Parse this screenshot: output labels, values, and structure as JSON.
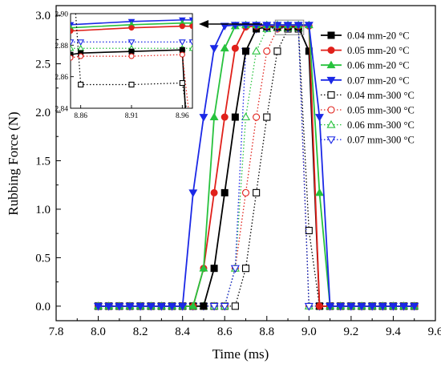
{
  "chart_data": {
    "type": "line",
    "xlabel": "Time (ms)",
    "ylabel": "Rubbing Force (N)",
    "xlim": [
      7.8,
      9.6
    ],
    "ylim": [
      -0.15,
      3.1
    ],
    "xticks": [
      "7.8",
      "8.0",
      "8.2",
      "8.4",
      "8.6",
      "8.8",
      "9.0",
      "9.2",
      "9.4",
      "9.6"
    ],
    "yticks": [
      "0.0",
      "0.5",
      "1.0",
      "1.5",
      "2.0",
      "2.5",
      "3.0"
    ],
    "legend_position": "top-right",
    "grid": false,
    "series": [
      {
        "name": "0.04 mm-20 °C",
        "color": "#000000",
        "marker": "square",
        "filled": true,
        "dotted": false,
        "points": [
          [
            8.0,
            0
          ],
          [
            8.05,
            0
          ],
          [
            8.1,
            0
          ],
          [
            8.15,
            0
          ],
          [
            8.2,
            0
          ],
          [
            8.25,
            0
          ],
          [
            8.3,
            0
          ],
          [
            8.35,
            0
          ],
          [
            8.4,
            0
          ],
          [
            8.45,
            0
          ],
          [
            8.5,
            0
          ],
          [
            8.55,
            0.39
          ],
          [
            8.6,
            1.17
          ],
          [
            8.65,
            1.95
          ],
          [
            8.7,
            2.63
          ],
          [
            8.75,
            2.86
          ],
          [
            8.8,
            2.88
          ],
          [
            8.85,
            2.88
          ],
          [
            8.9,
            2.88
          ],
          [
            8.95,
            2.88
          ],
          [
            9.0,
            2.63
          ],
          [
            9.05,
            0
          ],
          [
            9.1,
            0
          ],
          [
            9.15,
            0
          ],
          [
            9.2,
            0
          ],
          [
            9.25,
            0
          ],
          [
            9.3,
            0
          ],
          [
            9.35,
            0
          ],
          [
            9.4,
            0
          ],
          [
            9.45,
            0
          ],
          [
            9.5,
            0
          ]
        ]
      },
      {
        "name": "0.05 mm-20 °C",
        "color": "#e0201a",
        "marker": "circle",
        "filled": true,
        "dotted": false,
        "points": [
          [
            8.0,
            0
          ],
          [
            8.05,
            0
          ],
          [
            8.1,
            0
          ],
          [
            8.15,
            0
          ],
          [
            8.2,
            0
          ],
          [
            8.25,
            0
          ],
          [
            8.3,
            0
          ],
          [
            8.35,
            0
          ],
          [
            8.4,
            0
          ],
          [
            8.45,
            0
          ],
          [
            8.5,
            0.39
          ],
          [
            8.55,
            1.17
          ],
          [
            8.6,
            1.95
          ],
          [
            8.65,
            2.66
          ],
          [
            8.7,
            2.88
          ],
          [
            8.75,
            2.89
          ],
          [
            8.8,
            2.89
          ],
          [
            8.85,
            2.89
          ],
          [
            8.9,
            2.89
          ],
          [
            8.95,
            2.89
          ],
          [
            9.0,
            2.89
          ],
          [
            9.05,
            0
          ],
          [
            9.1,
            0
          ],
          [
            9.15,
            0
          ],
          [
            9.2,
            0
          ],
          [
            9.25,
            0
          ],
          [
            9.3,
            0
          ],
          [
            9.35,
            0
          ],
          [
            9.4,
            0
          ],
          [
            9.45,
            0
          ],
          [
            9.5,
            0
          ]
        ]
      },
      {
        "name": "0.06 mm-20 °C",
        "color": "#27c23d",
        "marker": "triangle-up",
        "filled": true,
        "dotted": false,
        "points": [
          [
            8.0,
            0
          ],
          [
            8.05,
            0
          ],
          [
            8.1,
            0
          ],
          [
            8.15,
            0
          ],
          [
            8.2,
            0
          ],
          [
            8.25,
            0
          ],
          [
            8.3,
            0
          ],
          [
            8.35,
            0
          ],
          [
            8.4,
            0
          ],
          [
            8.45,
            0
          ],
          [
            8.5,
            0.39
          ],
          [
            8.55,
            1.95
          ],
          [
            8.6,
            2.66
          ],
          [
            8.65,
            2.89
          ],
          [
            8.7,
            2.9
          ],
          [
            8.75,
            2.9
          ],
          [
            8.8,
            2.9
          ],
          [
            8.85,
            2.9
          ],
          [
            8.9,
            2.9
          ],
          [
            8.95,
            2.9
          ],
          [
            9.0,
            2.9
          ],
          [
            9.05,
            1.17
          ],
          [
            9.1,
            0
          ],
          [
            9.15,
            0
          ],
          [
            9.2,
            0
          ],
          [
            9.25,
            0
          ],
          [
            9.3,
            0
          ],
          [
            9.35,
            0
          ],
          [
            9.4,
            0
          ],
          [
            9.45,
            0
          ],
          [
            9.5,
            0
          ]
        ]
      },
      {
        "name": "0.07 mm-20 °C",
        "color": "#1b28e6",
        "marker": "triangle-down",
        "filled": true,
        "dotted": false,
        "points": [
          [
            8.0,
            0
          ],
          [
            8.05,
            0
          ],
          [
            8.1,
            0
          ],
          [
            8.15,
            0
          ],
          [
            8.2,
            0
          ],
          [
            8.25,
            0
          ],
          [
            8.3,
            0
          ],
          [
            8.35,
            0
          ],
          [
            8.4,
            0
          ],
          [
            8.45,
            1.17
          ],
          [
            8.5,
            1.95
          ],
          [
            8.55,
            2.66
          ],
          [
            8.6,
            2.89
          ],
          [
            8.65,
            2.9
          ],
          [
            8.7,
            2.9
          ],
          [
            8.75,
            2.9
          ],
          [
            8.8,
            2.9
          ],
          [
            8.85,
            2.9
          ],
          [
            8.9,
            2.9
          ],
          [
            8.95,
            2.9
          ],
          [
            9.0,
            2.9
          ],
          [
            9.05,
            1.95
          ],
          [
            9.1,
            0
          ],
          [
            9.15,
            0
          ],
          [
            9.2,
            0
          ],
          [
            9.25,
            0
          ],
          [
            9.3,
            0
          ],
          [
            9.35,
            0
          ],
          [
            9.4,
            0
          ],
          [
            9.45,
            0
          ],
          [
            9.5,
            0
          ]
        ]
      },
      {
        "name": "0.04 mm-300 °C",
        "color": "#000000",
        "marker": "square",
        "filled": false,
        "dotted": true,
        "points": [
          [
            8.0,
            0
          ],
          [
            8.05,
            0
          ],
          [
            8.1,
            0
          ],
          [
            8.15,
            0
          ],
          [
            8.2,
            0
          ],
          [
            8.25,
            0
          ],
          [
            8.3,
            0
          ],
          [
            8.35,
            0
          ],
          [
            8.4,
            0
          ],
          [
            8.45,
            0
          ],
          [
            8.5,
            0
          ],
          [
            8.55,
            0
          ],
          [
            8.6,
            0
          ],
          [
            8.65,
            0
          ],
          [
            8.7,
            0.39
          ],
          [
            8.75,
            1.17
          ],
          [
            8.8,
            1.95
          ],
          [
            8.85,
            2.63
          ],
          [
            8.9,
            2.86
          ],
          [
            8.95,
            2.86
          ],
          [
            9.0,
            0.78
          ],
          [
            9.05,
            0
          ],
          [
            9.1,
            0
          ],
          [
            9.15,
            0
          ],
          [
            9.2,
            0
          ],
          [
            9.25,
            0
          ],
          [
            9.3,
            0
          ],
          [
            9.35,
            0
          ],
          [
            9.4,
            0
          ],
          [
            9.45,
            0
          ],
          [
            9.5,
            0
          ]
        ]
      },
      {
        "name": "0.05 mm-300 °C",
        "color": "#e0201a",
        "marker": "circle",
        "filled": false,
        "dotted": true,
        "points": [
          [
            8.0,
            0
          ],
          [
            8.05,
            0
          ],
          [
            8.1,
            0
          ],
          [
            8.15,
            0
          ],
          [
            8.2,
            0
          ],
          [
            8.25,
            0
          ],
          [
            8.3,
            0
          ],
          [
            8.35,
            0
          ],
          [
            8.4,
            0
          ],
          [
            8.45,
            0
          ],
          [
            8.5,
            0
          ],
          [
            8.55,
            0
          ],
          [
            8.6,
            0
          ],
          [
            8.65,
            0.39
          ],
          [
            8.7,
            1.17
          ],
          [
            8.75,
            1.95
          ],
          [
            8.8,
            2.63
          ],
          [
            8.85,
            2.86
          ],
          [
            8.9,
            2.87
          ],
          [
            8.95,
            2.87
          ],
          [
            9.0,
            0
          ],
          [
            9.05,
            0
          ],
          [
            9.1,
            0
          ],
          [
            9.15,
            0
          ],
          [
            9.2,
            0
          ],
          [
            9.25,
            0
          ],
          [
            9.3,
            0
          ],
          [
            9.35,
            0
          ],
          [
            9.4,
            0
          ],
          [
            9.45,
            0
          ],
          [
            9.5,
            0
          ]
        ]
      },
      {
        "name": "0.06 mm-300 °C",
        "color": "#27c23d",
        "marker": "triangle-up",
        "filled": false,
        "dotted": true,
        "points": [
          [
            8.0,
            0
          ],
          [
            8.05,
            0
          ],
          [
            8.1,
            0
          ],
          [
            8.15,
            0
          ],
          [
            8.2,
            0
          ],
          [
            8.25,
            0
          ],
          [
            8.3,
            0
          ],
          [
            8.35,
            0
          ],
          [
            8.4,
            0
          ],
          [
            8.45,
            0
          ],
          [
            8.5,
            0
          ],
          [
            8.55,
            0
          ],
          [
            8.6,
            0
          ],
          [
            8.65,
            0.39
          ],
          [
            8.7,
            1.95
          ],
          [
            8.75,
            2.63
          ],
          [
            8.8,
            2.86
          ],
          [
            8.85,
            2.87
          ],
          [
            8.9,
            2.87
          ],
          [
            8.95,
            2.87
          ],
          [
            9.0,
            0
          ],
          [
            9.05,
            0
          ],
          [
            9.1,
            0
          ],
          [
            9.15,
            0
          ],
          [
            9.2,
            0
          ],
          [
            9.25,
            0
          ],
          [
            9.3,
            0
          ],
          [
            9.35,
            0
          ],
          [
            9.4,
            0
          ],
          [
            9.45,
            0
          ],
          [
            9.5,
            0
          ]
        ]
      },
      {
        "name": "0.07 mm-300 °C",
        "color": "#1b28e6",
        "marker": "triangle-down",
        "filled": false,
        "dotted": true,
        "points": [
          [
            8.0,
            0
          ],
          [
            8.05,
            0
          ],
          [
            8.1,
            0
          ],
          [
            8.15,
            0
          ],
          [
            8.2,
            0
          ],
          [
            8.25,
            0
          ],
          [
            8.3,
            0
          ],
          [
            8.35,
            0
          ],
          [
            8.4,
            0
          ],
          [
            8.45,
            0
          ],
          [
            8.5,
            0
          ],
          [
            8.55,
            0
          ],
          [
            8.6,
            0
          ],
          [
            8.65,
            0.39
          ],
          [
            8.7,
            2.63
          ],
          [
            8.75,
            2.86
          ],
          [
            8.8,
            2.87
          ],
          [
            8.85,
            2.87
          ],
          [
            8.9,
            2.87
          ],
          [
            8.95,
            2.87
          ],
          [
            9.0,
            0
          ],
          [
            9.05,
            0
          ],
          [
            9.1,
            0
          ],
          [
            9.15,
            0
          ],
          [
            9.2,
            0
          ],
          [
            9.25,
            0
          ],
          [
            9.3,
            0
          ],
          [
            9.35,
            0
          ],
          [
            9.4,
            0
          ],
          [
            9.45,
            0
          ],
          [
            9.5,
            0
          ]
        ]
      }
    ],
    "inset": {
      "xlim": [
        8.85,
        8.97
      ],
      "ylim": [
        2.84,
        2.9
      ],
      "xticks": [
        "8.86",
        "8.91",
        "8.96"
      ],
      "yticks": [
        "2.84",
        "2.86",
        "2.88",
        "2.90"
      ],
      "series": [
        {
          "series": "0.07 mm-20 °C",
          "points": [
            [
              8.85,
              2.893
            ],
            [
              8.91,
              2.895
            ],
            [
              8.96,
              2.896
            ],
            [
              8.97,
              2.896
            ]
          ]
        },
        {
          "series": "0.06 mm-20 °C",
          "points": [
            [
              8.85,
              2.891
            ],
            [
              8.91,
              2.893
            ],
            [
              8.96,
              2.894
            ],
            [
              8.97,
              2.894
            ]
          ]
        },
        {
          "series": "0.05 mm-20 °C",
          "points": [
            [
              8.85,
              2.889
            ],
            [
              8.91,
              2.891
            ],
            [
              8.96,
              2.892
            ],
            [
              8.97,
              2.892
            ]
          ]
        },
        {
          "series": "0.07 mm-300 °C",
          "points": [
            [
              8.85,
              2.882
            ],
            [
              8.86,
              2.882
            ],
            [
              8.91,
              2.882
            ],
            [
              8.96,
              2.882
            ],
            [
              8.97,
              2.882
            ]
          ]
        },
        {
          "series": "0.06 mm-300 °C",
          "points": [
            [
              8.85,
              2.878
            ],
            [
              8.86,
              2.878
            ],
            [
              8.91,
              2.878
            ],
            [
              8.96,
              2.878
            ],
            [
              8.97,
              2.878
            ]
          ]
        },
        {
          "series": "0.04 mm-20 °C",
          "points": [
            [
              8.85,
              2.874
            ],
            [
              8.86,
              2.875
            ],
            [
              8.91,
              2.876
            ],
            [
              8.96,
              2.877
            ],
            [
              8.963,
              2.84
            ]
          ]
        },
        {
          "series": "0.05 mm-300 °C",
          "points": [
            [
              8.85,
              2.872
            ],
            [
              8.86,
              2.873
            ],
            [
              8.91,
              2.873
            ],
            [
              8.96,
              2.874
            ],
            [
              8.966,
              2.84
            ]
          ]
        },
        {
          "series": "0.04 mm-300 °C",
          "points": [
            [
              8.855,
              2.9
            ],
            [
              8.86,
              2.855
            ],
            [
              8.91,
              2.855
            ],
            [
              8.96,
              2.856
            ],
            [
              8.964,
              2.84
            ]
          ]
        }
      ]
    }
  }
}
